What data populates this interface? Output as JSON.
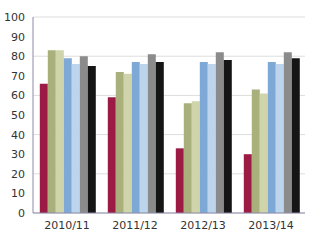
{
  "chart_data": {
    "type": "bar",
    "categories": [
      "2010/11",
      "2011/12",
      "2012/13",
      "2013/14"
    ],
    "series": [
      {
        "color": "#9b1b45",
        "values": [
          66,
          59,
          33,
          30
        ]
      },
      {
        "color": "#a9b07c",
        "values": [
          83,
          72,
          56,
          63
        ]
      },
      {
        "color": "#cfd4ab",
        "values": [
          83,
          71,
          57,
          61
        ]
      },
      {
        "color": "#7ea9d6",
        "values": [
          79,
          77,
          77,
          77
        ]
      },
      {
        "color": "#bcd5ec",
        "values": [
          76,
          76,
          76,
          76
        ]
      },
      {
        "color": "#8b8b8b",
        "values": [
          80,
          81,
          82,
          82
        ]
      },
      {
        "color": "#151515",
        "values": [
          75,
          77,
          78,
          79
        ]
      }
    ],
    "ylim": [
      0,
      100
    ],
    "yticks": [
      0,
      10,
      20,
      30,
      40,
      50,
      60,
      70,
      80,
      90,
      100
    ],
    "grid": true
  }
}
